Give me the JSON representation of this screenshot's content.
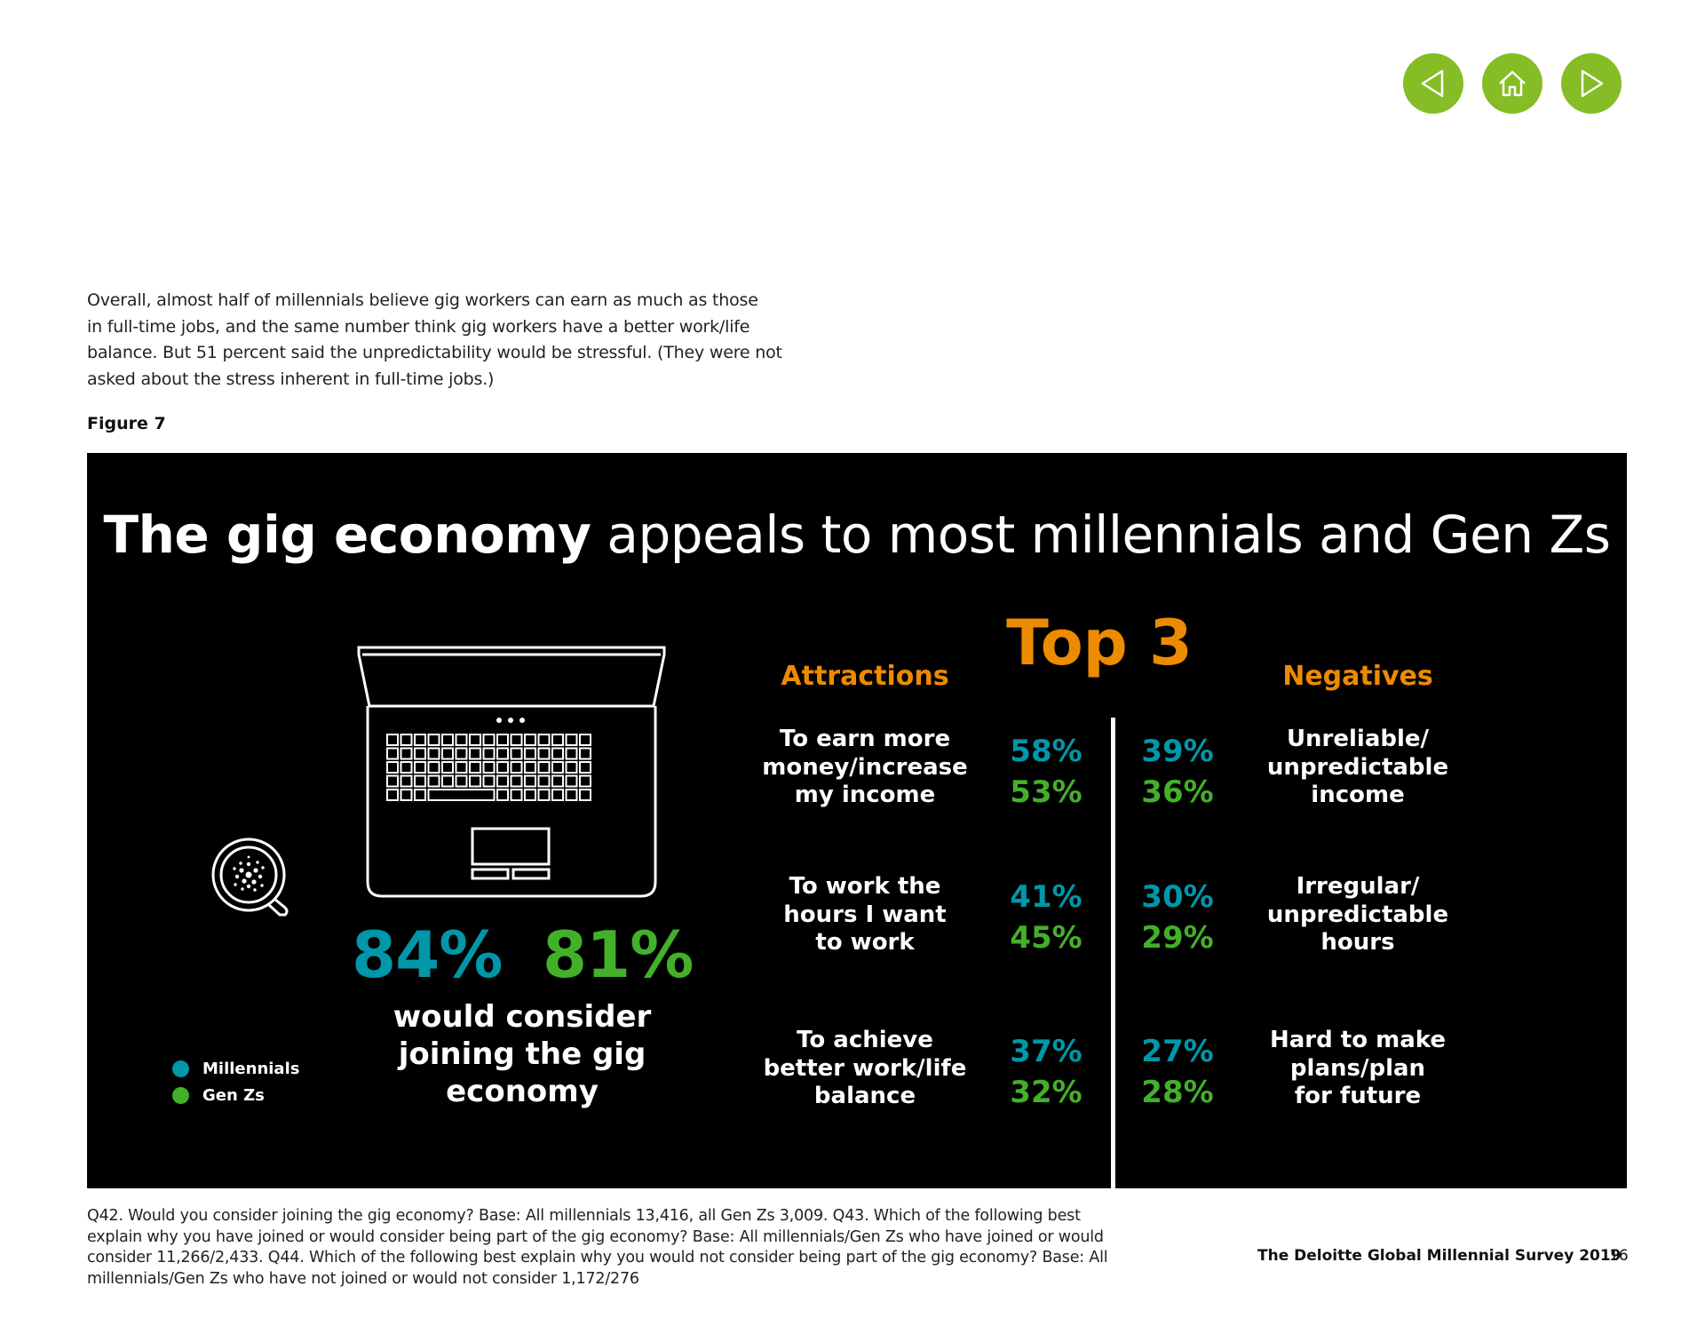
{
  "nav": {
    "prev_icon": "arrow-left-icon",
    "home_icon": "home-icon",
    "next_icon": "arrow-right-icon",
    "accent": "#86bc25"
  },
  "intro": {
    "lines": [
      "Overall, almost half of millennials believe gig workers can earn as much as those",
      "in full-time jobs, and the same number think gig workers have a better work/life",
      "balance. But 51 percent said the unpredictability would be stressful. (They were not",
      "asked about the stress inherent in full-time jobs.)"
    ]
  },
  "figure_label": "Figure 7",
  "panel": {
    "title_bold": "The gig economy",
    "title_light": " appeals to most millennials and Gen Zs",
    "laptop_icon": "laptop-icon",
    "coffee_icon": "coffee-cup-icon",
    "consider": {
      "millennials_pct": "84%",
      "genz_pct": "81%",
      "lines": [
        "would consider",
        "joining the gig",
        "economy"
      ]
    },
    "legend": [
      {
        "label": "Millennials",
        "color": "#0097a9"
      },
      {
        "label": "Gen Zs",
        "color": "#43b02a"
      }
    ],
    "top3": "Top 3",
    "attractions_head": "Attractions",
    "negatives_head": "Negatives",
    "rows": [
      {
        "attraction": [
          "To earn more",
          "money/increase",
          "my income"
        ],
        "attr_mil": "58%",
        "attr_gen": "53%",
        "neg_mil": "39%",
        "neg_gen": "36%",
        "negative": [
          "Unreliable/",
          "unpredictable",
          "income"
        ]
      },
      {
        "attraction": [
          "To work the",
          "hours I want",
          "to work"
        ],
        "attr_mil": "41%",
        "attr_gen": "45%",
        "neg_mil": "30%",
        "neg_gen": "29%",
        "negative": [
          "Irregular/",
          "unpredictable",
          "hours"
        ]
      },
      {
        "attraction": [
          "To achieve",
          "better work/life",
          "balance"
        ],
        "attr_mil": "37%",
        "attr_gen": "32%",
        "neg_mil": "27%",
        "neg_gen": "28%",
        "negative": [
          "Hard to make",
          "plans/plan",
          "for future"
        ]
      }
    ],
    "colors": {
      "millennials": "#0097a9",
      "genz": "#43b02a",
      "heading": "#ed8b00"
    }
  },
  "footnote": {
    "lines": [
      "Q42. Would you consider joining the gig economy? Base: All millennials 13,416, all Gen Zs 3,009. Q43. Which of the following best",
      "explain why you have joined or would consider being part of the gig economy? Base: All millennials/Gen Zs who have joined or would",
      "consider 11,266/2,433. Q44. Which of the following best explain why you would not consider being part of the gig economy? Base: All",
      "millennials/Gen Zs who have not joined or would not consider 1,172/276"
    ]
  },
  "source": "The Deloitte Global Millennial Survey 2019",
  "page_number": "16"
}
